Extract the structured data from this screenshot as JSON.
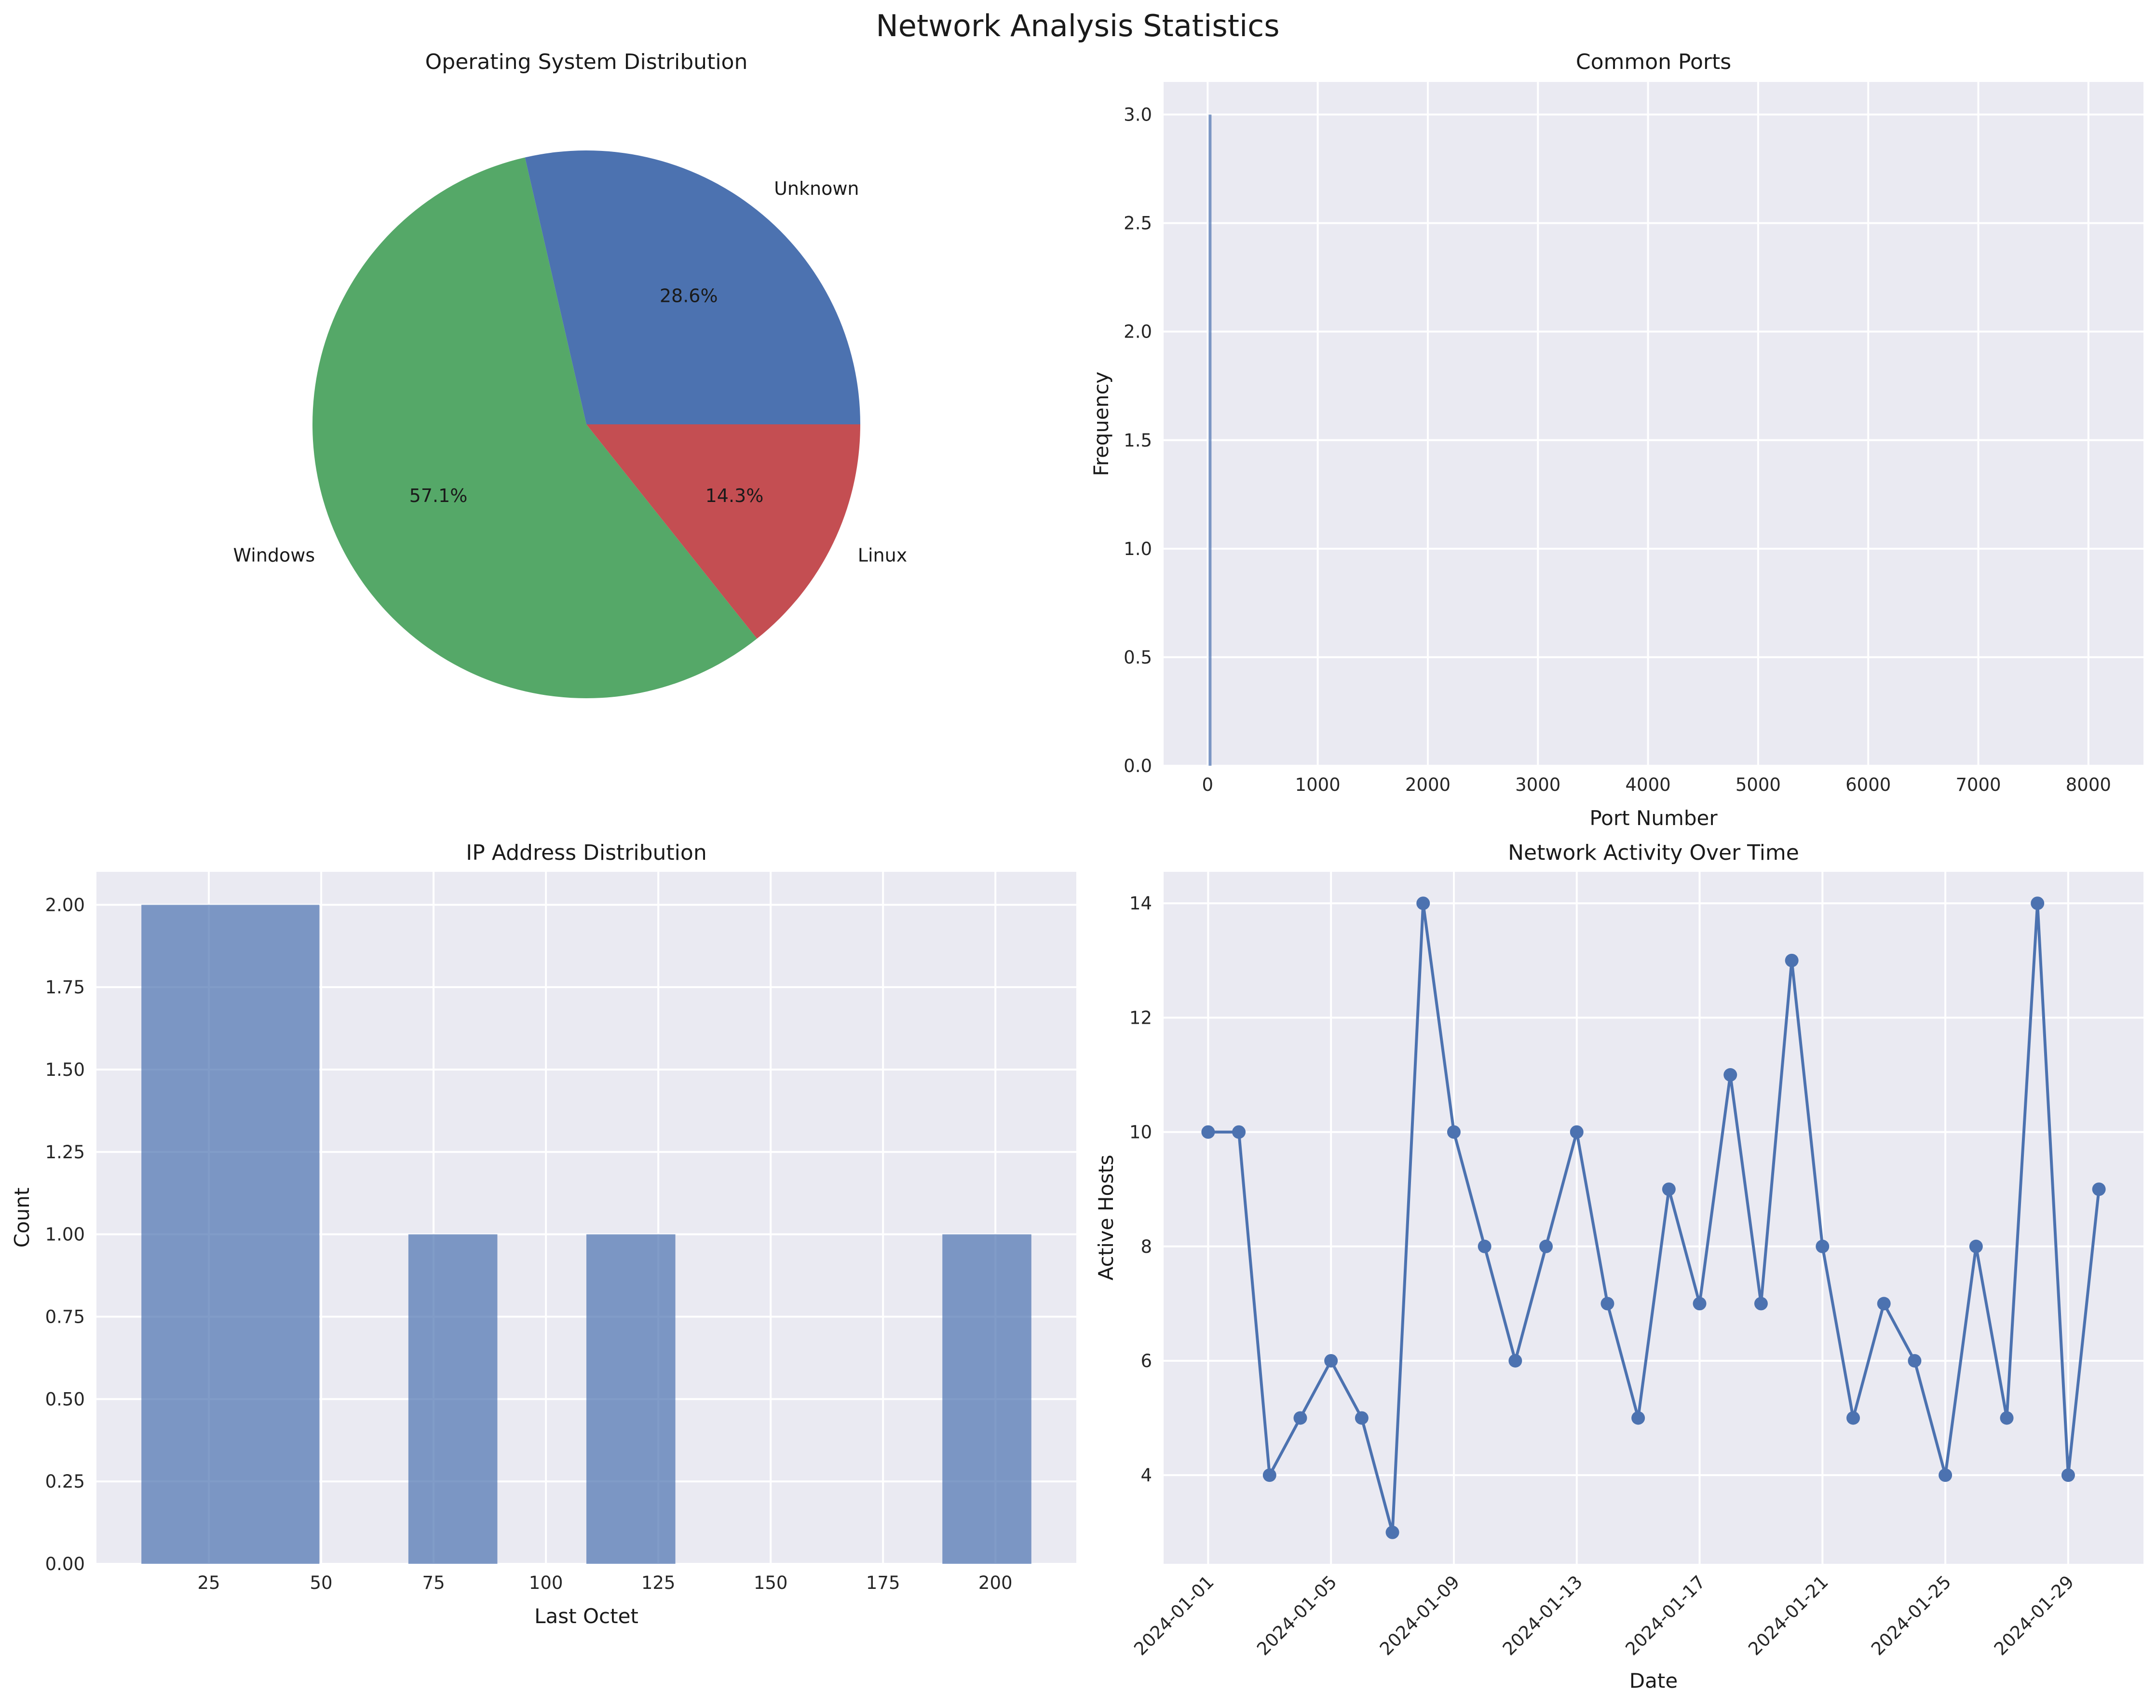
{
  "figure": {
    "title": "Network Analysis Statistics"
  },
  "chart_data": [
    {
      "type": "pie",
      "title": "Operating System Distribution",
      "slices": [
        {
          "label": "Unknown",
          "value": 28.6,
          "pct_label": "28.6%",
          "color": "#4c72b0"
        },
        {
          "label": "Windows",
          "value": 57.1,
          "pct_label": "57.1%",
          "color": "#55a868"
        },
        {
          "label": "Linux",
          "value": 14.3,
          "pct_label": "14.3%",
          "color": "#c44e52"
        }
      ]
    },
    {
      "type": "bar",
      "title": "Common Ports",
      "xlabel": "Port Number",
      "ylabel": "Frequency",
      "xlim": [
        -400,
        8500
      ],
      "ylim": [
        0,
        3.15
      ],
      "xticks": [
        0,
        1000,
        2000,
        3000,
        4000,
        5000,
        6000,
        7000,
        8000
      ],
      "yticks": [
        "0.0",
        "0.5",
        "1.0",
        "1.5",
        "2.0",
        "2.5",
        "3.0"
      ],
      "bars": [
        {
          "x": 22,
          "value": 3
        }
      ],
      "color": "#4c72b0"
    },
    {
      "type": "bar",
      "title": "IP Address Distribution",
      "xlabel": "Last Octet",
      "ylabel": "Count",
      "xlim": [
        0,
        218
      ],
      "ylim": [
        0,
        2.1
      ],
      "xticks": [
        25,
        50,
        75,
        100,
        125,
        150,
        175,
        200
      ],
      "yticks": [
        "0.00",
        "0.25",
        "0.50",
        "0.75",
        "1.00",
        "1.25",
        "1.50",
        "1.75",
        "2.00"
      ],
      "bins": [
        {
          "start": 10,
          "end": 49.6,
          "value": 2
        },
        {
          "start": 69.4,
          "end": 89.2,
          "value": 1
        },
        {
          "start": 109,
          "end": 128.8,
          "value": 1
        },
        {
          "start": 188.2,
          "end": 208,
          "value": 1
        }
      ],
      "color": "#4c72b0"
    },
    {
      "type": "line",
      "title": "Network Activity Over Time",
      "xlabel": "Date",
      "ylabel": "Active Hosts",
      "ylim": [
        2.45,
        14.55
      ],
      "yticks": [
        4,
        6,
        8,
        10,
        12,
        14
      ],
      "x": [
        "2024-01-01",
        "2024-01-02",
        "2024-01-03",
        "2024-01-04",
        "2024-01-05",
        "2024-01-06",
        "2024-01-07",
        "2024-01-08",
        "2024-01-09",
        "2024-01-10",
        "2024-01-11",
        "2024-01-12",
        "2024-01-13",
        "2024-01-14",
        "2024-01-15",
        "2024-01-16",
        "2024-01-17",
        "2024-01-18",
        "2024-01-19",
        "2024-01-20",
        "2024-01-21",
        "2024-01-22",
        "2024-01-23",
        "2024-01-24",
        "2024-01-25",
        "2024-01-26",
        "2024-01-27",
        "2024-01-28",
        "2024-01-29",
        "2024-01-30"
      ],
      "values": [
        10,
        10,
        4,
        5,
        6,
        5,
        3,
        14,
        10,
        8,
        6,
        8,
        10,
        7,
        5,
        9,
        7,
        11,
        7,
        13,
        8,
        5,
        7,
        6,
        4,
        8,
        5,
        14,
        4,
        9
      ],
      "xtick_labels": [
        "2024-01-01",
        "2024-01-05",
        "2024-01-09",
        "2024-01-13",
        "2024-01-17",
        "2024-01-21",
        "2024-01-25",
        "2024-01-29"
      ],
      "color": "#4c72b0"
    }
  ]
}
